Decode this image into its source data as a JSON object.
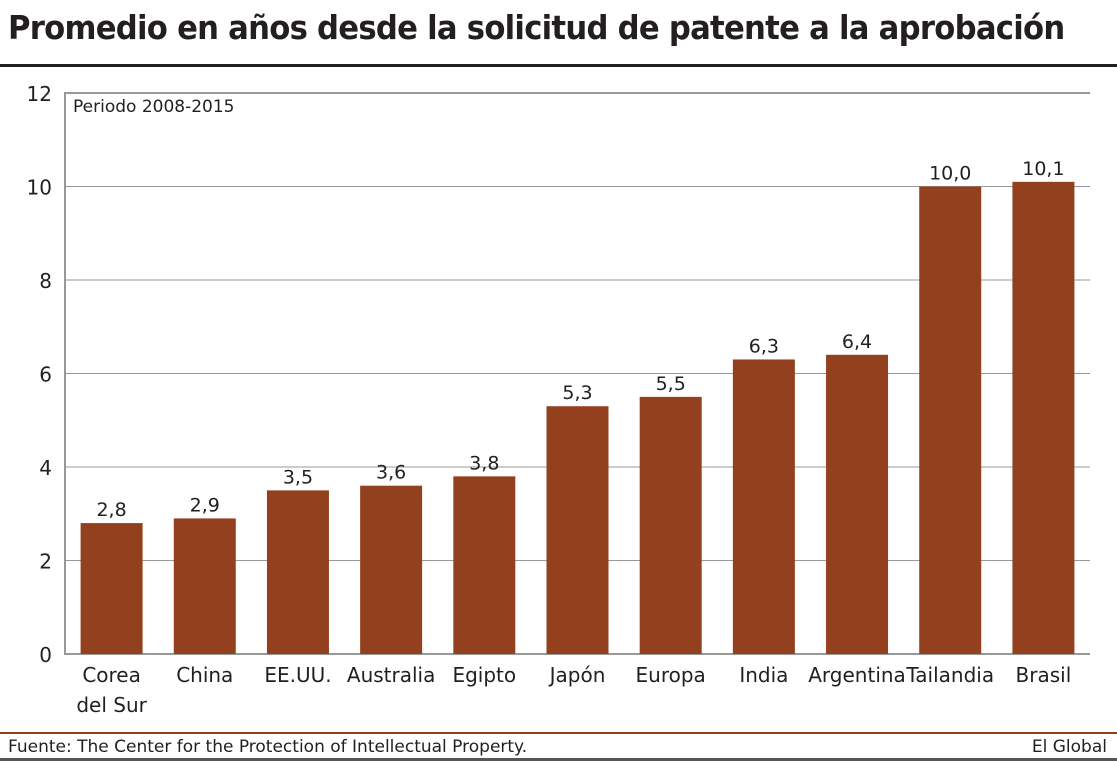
{
  "chart_data": {
    "type": "bar",
    "title": "Promedio en años desde la solicitud de patente a la aprobación",
    "subtitle": "Periodo 2008-2015",
    "categories": [
      [
        "Corea",
        "del Sur"
      ],
      [
        "China"
      ],
      [
        "EE.UU."
      ],
      [
        "Australia"
      ],
      [
        "Egipto"
      ],
      [
        "Japón"
      ],
      [
        "Europa"
      ],
      [
        "India"
      ],
      [
        "Argentina"
      ],
      [
        "Tailandia"
      ],
      [
        "Brasil"
      ]
    ],
    "values": [
      2.8,
      2.9,
      3.5,
      3.6,
      3.8,
      5.3,
      5.5,
      6.3,
      6.4,
      10.0,
      10.1
    ],
    "data_labels": [
      "2,8",
      "2,9",
      "3,5",
      "3,6",
      "3,8",
      "5,3",
      "5,5",
      "6,3",
      "6,4",
      "10,0",
      "10,1"
    ],
    "ylim": [
      0,
      12
    ],
    "yticks": [
      0,
      2,
      4,
      6,
      8,
      10,
      12
    ],
    "grid": true,
    "xlabel": "",
    "ylabel": "",
    "colors": {
      "bar": "#93401f",
      "grid": "#999999",
      "rule": "#93401f"
    }
  },
  "footer": {
    "source": "Fuente: The Center for the Protection of Intellectual Property.",
    "brand": "El Global"
  }
}
